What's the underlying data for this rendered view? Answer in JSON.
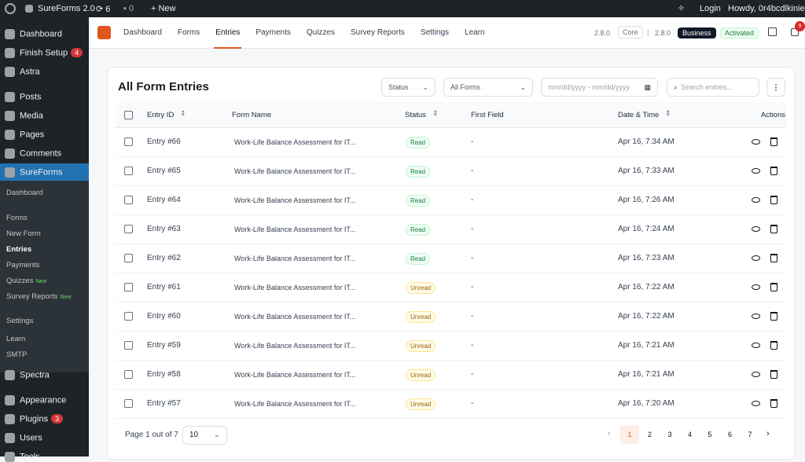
{
  "admin_bar": {
    "site": "SureForms 2.0",
    "updates": "6",
    "comments": "0",
    "new": "New",
    "login": "Login",
    "howdy": "Howdy, 0r4bcdlkinie"
  },
  "sidebar": {
    "menu_top": [
      {
        "label": "Dashboard"
      },
      {
        "label": "Finish Setup",
        "badge": "4"
      },
      {
        "label": "Astra"
      },
      {
        "label": "Posts"
      },
      {
        "label": "Media"
      },
      {
        "label": "Pages"
      },
      {
        "label": "Comments"
      },
      {
        "label": "SureForms"
      }
    ],
    "submenu": [
      {
        "label": "Dashboard"
      },
      {
        "label": "Forms"
      },
      {
        "label": "New Form"
      },
      {
        "label": "Entries"
      },
      {
        "label": "Payments"
      },
      {
        "label": "Quizzes",
        "tag": "New"
      },
      {
        "label": "Survey Reports",
        "tag": "New"
      },
      {
        "label": "Settings"
      },
      {
        "label": "Learn"
      },
      {
        "label": "SMTP"
      }
    ],
    "menu_bottom": [
      {
        "label": "Spectra"
      },
      {
        "label": "Appearance"
      },
      {
        "label": "Plugins",
        "badge": "3"
      },
      {
        "label": "Users"
      },
      {
        "label": "Tools"
      }
    ]
  },
  "top_nav": {
    "items": [
      "Dashboard",
      "Forms",
      "Entries",
      "Payments",
      "Quizzes",
      "Survey Reports",
      "Settings",
      "Learn"
    ],
    "core_version": "2.8.0",
    "core": "Core",
    "separator": "|",
    "business_version": "2.8.0",
    "business": "Business",
    "status": "Activated",
    "notifications": "9"
  },
  "header": {
    "title": "All Form Entries",
    "status_filter": "Status",
    "form_filter": "All Forms",
    "date_placeholder": "mm/dd/yyyy - mm/dd/yyyy",
    "search_placeholder": "Search entries..."
  },
  "table": {
    "columns": [
      "Entry ID",
      "Form Name",
      "Status",
      "First Field",
      "Date & Time",
      "Actions"
    ],
    "rows": [
      [
        "Entry #66",
        "Work-Life Balance Assessment for IT...",
        "Read",
        "-",
        "Apr 16, 7:34 AM"
      ],
      [
        "Entry #65",
        "Work-Life Balance Assessment for IT...",
        "Read",
        "-",
        "Apr 16, 7:33 AM"
      ],
      [
        "Entry #64",
        "Work-Life Balance Assessment for IT...",
        "Read",
        "-",
        "Apr 16, 7:26 AM"
      ],
      [
        "Entry #63",
        "Work-Life Balance Assessment for IT...",
        "Read",
        "-",
        "Apr 16, 7:24 AM"
      ],
      [
        "Entry #62",
        "Work-Life Balance Assessment for IT...",
        "Read",
        "-",
        "Apr 16, 7:23 AM"
      ],
      [
        "Entry #61",
        "Work-Life Balance Assessment for IT...",
        "Unread",
        "-",
        "Apr 16, 7:22 AM"
      ],
      [
        "Entry #60",
        "Work-Life Balance Assessment for IT...",
        "Unread",
        "-",
        "Apr 16, 7:22 AM"
      ],
      [
        "Entry #59",
        "Work-Life Balance Assessment for IT...",
        "Unread",
        "-",
        "Apr 16, 7:21 AM"
      ],
      [
        "Entry #58",
        "Work-Life Balance Assessment for IT...",
        "Unread",
        "-",
        "Apr 16, 7:21 AM"
      ],
      [
        "Entry #57",
        "Work-Life Balance Assessment for IT...",
        "Unread",
        "-",
        "Apr 16, 7:20 AM"
      ]
    ]
  },
  "footer": {
    "page_info": "Page 1 out of 7",
    "per_page": "10",
    "pages": [
      1,
      2,
      3,
      4,
      5,
      6,
      7
    ]
  }
}
